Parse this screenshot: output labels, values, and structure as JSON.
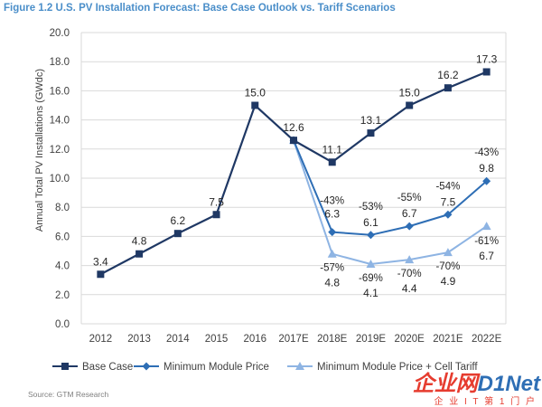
{
  "figure": {
    "title": "Figure 1.2  U.S. PV Installation Forecast: Base Case Outlook vs. Tariff Scenarios",
    "source": "Source:  GTM Research",
    "watermark": {
      "logo_cn": "企业网",
      "logo_en": "D1Net",
      "tagline": "企 业 I T 第 1 门 户"
    }
  },
  "colors": {
    "base": "#1f3864",
    "module": "#2e6eb5",
    "cell": "#8eb4e3",
    "grid": "#d9d9d9",
    "axis_text": "#404040",
    "label_text": "#262626"
  },
  "chart_data": {
    "type": "line",
    "title": "",
    "ylabel": "Annual Total PV Installations (GWdc)",
    "xlabel": "",
    "ylim": [
      0,
      20
    ],
    "yticks": [
      "0.0",
      "2.0",
      "4.0",
      "6.0",
      "8.0",
      "10.0",
      "12.0",
      "14.0",
      "16.0",
      "18.0",
      "20.0"
    ],
    "categories": [
      "2012",
      "2013",
      "2014",
      "2015",
      "2016",
      "2017E",
      "2018E",
      "2019E",
      "2020E",
      "2021E",
      "2022E"
    ],
    "grid": "horizontal",
    "legend_position": "bottom",
    "series": [
      {
        "name": "Base Case",
        "marker": "square",
        "values": [
          3.4,
          4.8,
          6.2,
          7.5,
          15.0,
          12.6,
          11.1,
          13.1,
          15.0,
          16.2,
          17.3
        ],
        "labels": [
          "3.4",
          "4.8",
          "6.2",
          "7.5",
          "15.0",
          "12.6",
          "11.1",
          "13.1",
          "15.0",
          "16.2",
          "17.3"
        ]
      },
      {
        "name": "Minimum Module Price",
        "marker": "diamond",
        "values": [
          null,
          null,
          null,
          null,
          null,
          12.6,
          6.3,
          6.1,
          6.7,
          7.5,
          9.8
        ],
        "labels": [
          null,
          null,
          null,
          null,
          null,
          null,
          "6.3",
          "6.1",
          "6.7",
          "7.5",
          "9.8"
        ],
        "pct_labels": [
          null,
          null,
          null,
          null,
          null,
          null,
          "-43%",
          "-53%",
          "-55%",
          "-54%",
          "-43%"
        ]
      },
      {
        "name": "Minimum Module Price + Cell Tariff",
        "marker": "triangle",
        "values": [
          null,
          null,
          null,
          null,
          null,
          12.6,
          4.8,
          4.1,
          4.4,
          4.9,
          6.7
        ],
        "labels": [
          null,
          null,
          null,
          null,
          null,
          null,
          "4.8",
          "4.1",
          "4.4",
          "4.9",
          "6.7"
        ],
        "pct_labels": [
          null,
          null,
          null,
          null,
          null,
          null,
          "-57%",
          "-69%",
          "-70%",
          "-70%",
          "-61%"
        ]
      }
    ]
  }
}
